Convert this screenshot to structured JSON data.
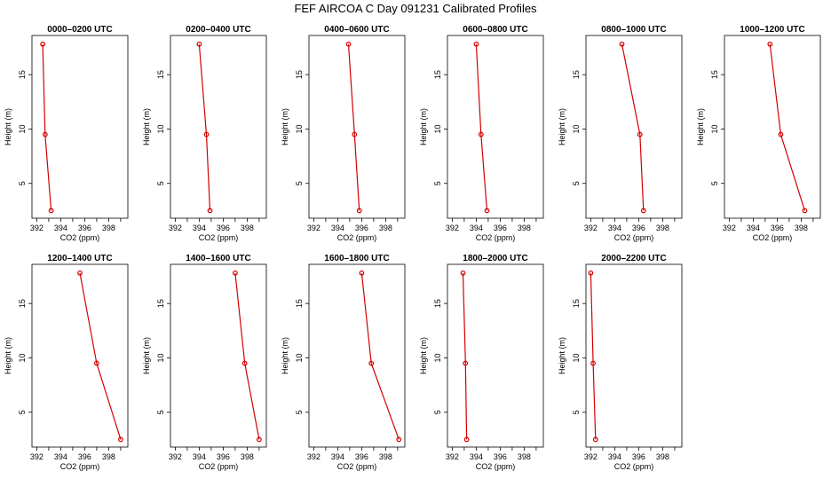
{
  "title": "FEF AIRCOA C  Day 091231  Calibrated Profiles",
  "colors": {
    "series": "#d40000",
    "axis": "#000000",
    "background": "#ffffff"
  },
  "chart_data": [
    {
      "type": "line",
      "title": "0000–0200 UTC",
      "xlabel": "CO2 (ppm)",
      "ylabel": "Height (m)",
      "xlim": [
        391.6,
        399.6
      ],
      "ylim": [
        1.8,
        18.6
      ],
      "xticks": [
        392,
        394,
        396,
        398
      ],
      "yticks": [
        5,
        10,
        15
      ],
      "x": [
        392.5,
        392.7,
        393.2
      ],
      "y": [
        17.8,
        9.5,
        2.5
      ]
    },
    {
      "type": "line",
      "title": "0200–0400 UTC",
      "xlabel": "CO2 (ppm)",
      "ylabel": "Height (m)",
      "xlim": [
        391.6,
        399.6
      ],
      "ylim": [
        1.8,
        18.6
      ],
      "xticks": [
        392,
        394,
        396,
        398
      ],
      "yticks": [
        5,
        10,
        15
      ],
      "x": [
        394.0,
        394.6,
        394.9
      ],
      "y": [
        17.8,
        9.5,
        2.5
      ]
    },
    {
      "type": "line",
      "title": "0400–0600 UTC",
      "xlabel": "CO2 (ppm)",
      "ylabel": "Height (m)",
      "xlim": [
        391.6,
        399.6
      ],
      "ylim": [
        1.8,
        18.6
      ],
      "xticks": [
        392,
        394,
        396,
        398
      ],
      "yticks": [
        5,
        10,
        15
      ],
      "x": [
        394.9,
        395.4,
        395.8
      ],
      "y": [
        17.8,
        9.5,
        2.5
      ]
    },
    {
      "type": "line",
      "title": "0600–0800 UTC",
      "xlabel": "CO2 (ppm)",
      "ylabel": "Height (m)",
      "xlim": [
        391.6,
        399.6
      ],
      "ylim": [
        1.8,
        18.6
      ],
      "xticks": [
        392,
        394,
        396,
        398
      ],
      "yticks": [
        5,
        10,
        15
      ],
      "x": [
        394.0,
        394.4,
        394.9
      ],
      "y": [
        17.8,
        9.5,
        2.5
      ]
    },
    {
      "type": "line",
      "title": "0800–1000 UTC",
      "xlabel": "CO2 (ppm)",
      "ylabel": "Height (m)",
      "xlim": [
        391.6,
        399.6
      ],
      "ylim": [
        1.8,
        18.6
      ],
      "xticks": [
        392,
        394,
        396,
        398
      ],
      "yticks": [
        5,
        10,
        15
      ],
      "x": [
        394.6,
        396.1,
        396.4
      ],
      "y": [
        17.8,
        9.5,
        2.5
      ]
    },
    {
      "type": "line",
      "title": "1000–1200 UTC",
      "xlabel": "CO2 (ppm)",
      "ylabel": "Height (m)",
      "xlim": [
        391.6,
        399.6
      ],
      "ylim": [
        1.8,
        18.6
      ],
      "xticks": [
        392,
        394,
        396,
        398
      ],
      "yticks": [
        5,
        10,
        15
      ],
      "x": [
        395.4,
        396.3,
        398.3
      ],
      "y": [
        17.8,
        9.5,
        2.5
      ]
    },
    {
      "type": "line",
      "title": "1200–1400 UTC",
      "xlabel": "CO2 (ppm)",
      "ylabel": "Height (m)",
      "xlim": [
        391.6,
        399.6
      ],
      "ylim": [
        1.8,
        18.6
      ],
      "xticks": [
        392,
        394,
        396,
        398
      ],
      "yticks": [
        5,
        10,
        15
      ],
      "x": [
        395.6,
        397.0,
        399.0
      ],
      "y": [
        17.8,
        9.5,
        2.5
      ]
    },
    {
      "type": "line",
      "title": "1400–1600 UTC",
      "xlabel": "CO2 (ppm)",
      "ylabel": "Height (m)",
      "xlim": [
        391.6,
        399.6
      ],
      "ylim": [
        1.8,
        18.6
      ],
      "xticks": [
        392,
        394,
        396,
        398
      ],
      "yticks": [
        5,
        10,
        15
      ],
      "x": [
        397.0,
        397.8,
        399.0
      ],
      "y": [
        17.8,
        9.5,
        2.5
      ]
    },
    {
      "type": "line",
      "title": "1600–1800 UTC",
      "xlabel": "CO2 (ppm)",
      "ylabel": "Height (m)",
      "xlim": [
        391.6,
        399.6
      ],
      "ylim": [
        1.8,
        18.6
      ],
      "xticks": [
        392,
        394,
        396,
        398
      ],
      "yticks": [
        5,
        10,
        15
      ],
      "x": [
        396.0,
        396.8,
        399.1
      ],
      "y": [
        17.8,
        9.5,
        2.5
      ]
    },
    {
      "type": "line",
      "title": "1800–2000 UTC",
      "xlabel": "CO2 (ppm)",
      "ylabel": "Height (m)",
      "xlim": [
        391.6,
        399.6
      ],
      "ylim": [
        1.8,
        18.6
      ],
      "xticks": [
        392,
        394,
        396,
        398
      ],
      "yticks": [
        5,
        10,
        15
      ],
      "x": [
        392.9,
        393.1,
        393.2
      ],
      "y": [
        17.8,
        9.5,
        2.5
      ]
    },
    {
      "type": "line",
      "title": "2000–2200 UTC",
      "xlabel": "CO2 (ppm)",
      "ylabel": "Height (m)",
      "xlim": [
        391.6,
        399.6
      ],
      "ylim": [
        1.8,
        18.6
      ],
      "xticks": [
        392,
        394,
        396,
        398
      ],
      "yticks": [
        5,
        10,
        15
      ],
      "x": [
        392.0,
        392.2,
        392.4
      ],
      "y": [
        17.8,
        9.5,
        2.5
      ]
    }
  ]
}
